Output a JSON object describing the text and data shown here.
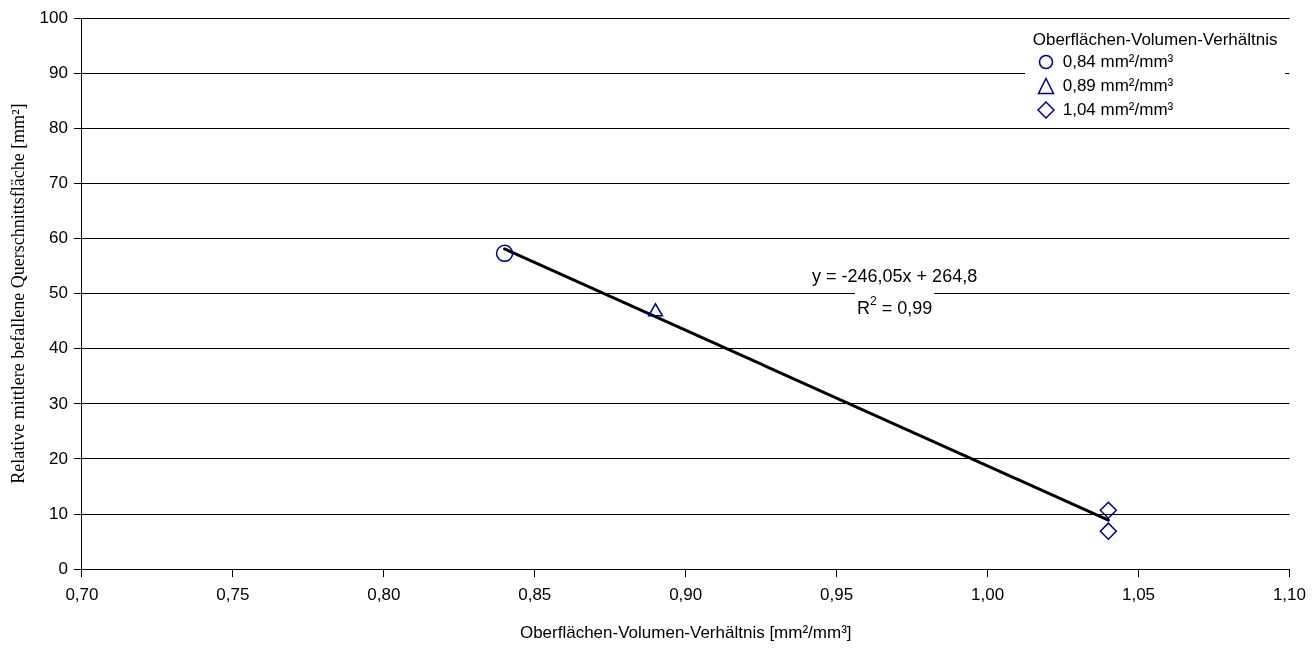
{
  "chart_data": {
    "type": "scatter",
    "xlabel": "Oberflächen-Volumen-Verhältnis [mm²/mm³]",
    "ylabel": "Relative mittlere befallene Querschnittsfläche [mm²]",
    "legend_title": "Oberflächen-Volumen-Verhältnis",
    "legend": "top right",
    "grid": "y",
    "xlim": [
      0.7,
      1.1
    ],
    "xticks": [
      {
        "value": 0.7,
        "label": "0,70"
      },
      {
        "value": 0.75,
        "label": "0,75"
      },
      {
        "value": 0.8,
        "label": "0,80"
      },
      {
        "value": 0.85,
        "label": "0,85"
      },
      {
        "value": 0.9,
        "label": "0,90"
      },
      {
        "value": 0.95,
        "label": "0,95"
      },
      {
        "value": 1.0,
        "label": "1,00"
      },
      {
        "value": 1.05,
        "label": "1,05"
      },
      {
        "value": 1.1,
        "label": "1,10"
      }
    ],
    "ylim": [
      0,
      100
    ],
    "yticks": [
      0,
      10,
      20,
      30,
      40,
      50,
      60,
      70,
      80,
      90,
      100
    ],
    "series": [
      {
        "name": "0,84 mm²/mm³",
        "color": "#000080",
        "marker": "circle",
        "x": [
          0.84
        ],
        "values": [
          57.3
        ]
      },
      {
        "name": "0,89 mm²/mm³",
        "color": "#000080",
        "marker": "triangle",
        "x": [
          0.89
        ],
        "values": [
          46.7
        ]
      },
      {
        "name": "1,04 mm²/mm³",
        "color": "#000080",
        "marker": "diamond",
        "x": [
          1.04,
          1.04
        ],
        "values": [
          10.7,
          6.9
        ]
      },
      {
        "type": "line",
        "color": "#000000",
        "marker": "none",
        "line_style": "solid",
        "x": [
          0.84,
          1.04
        ],
        "values": [
          58.1,
          8.9
        ]
      }
    ],
    "annotations": [
      "y = -246,05x + 264,8",
      "R$^{2}$ = 0,99"
    ]
  }
}
